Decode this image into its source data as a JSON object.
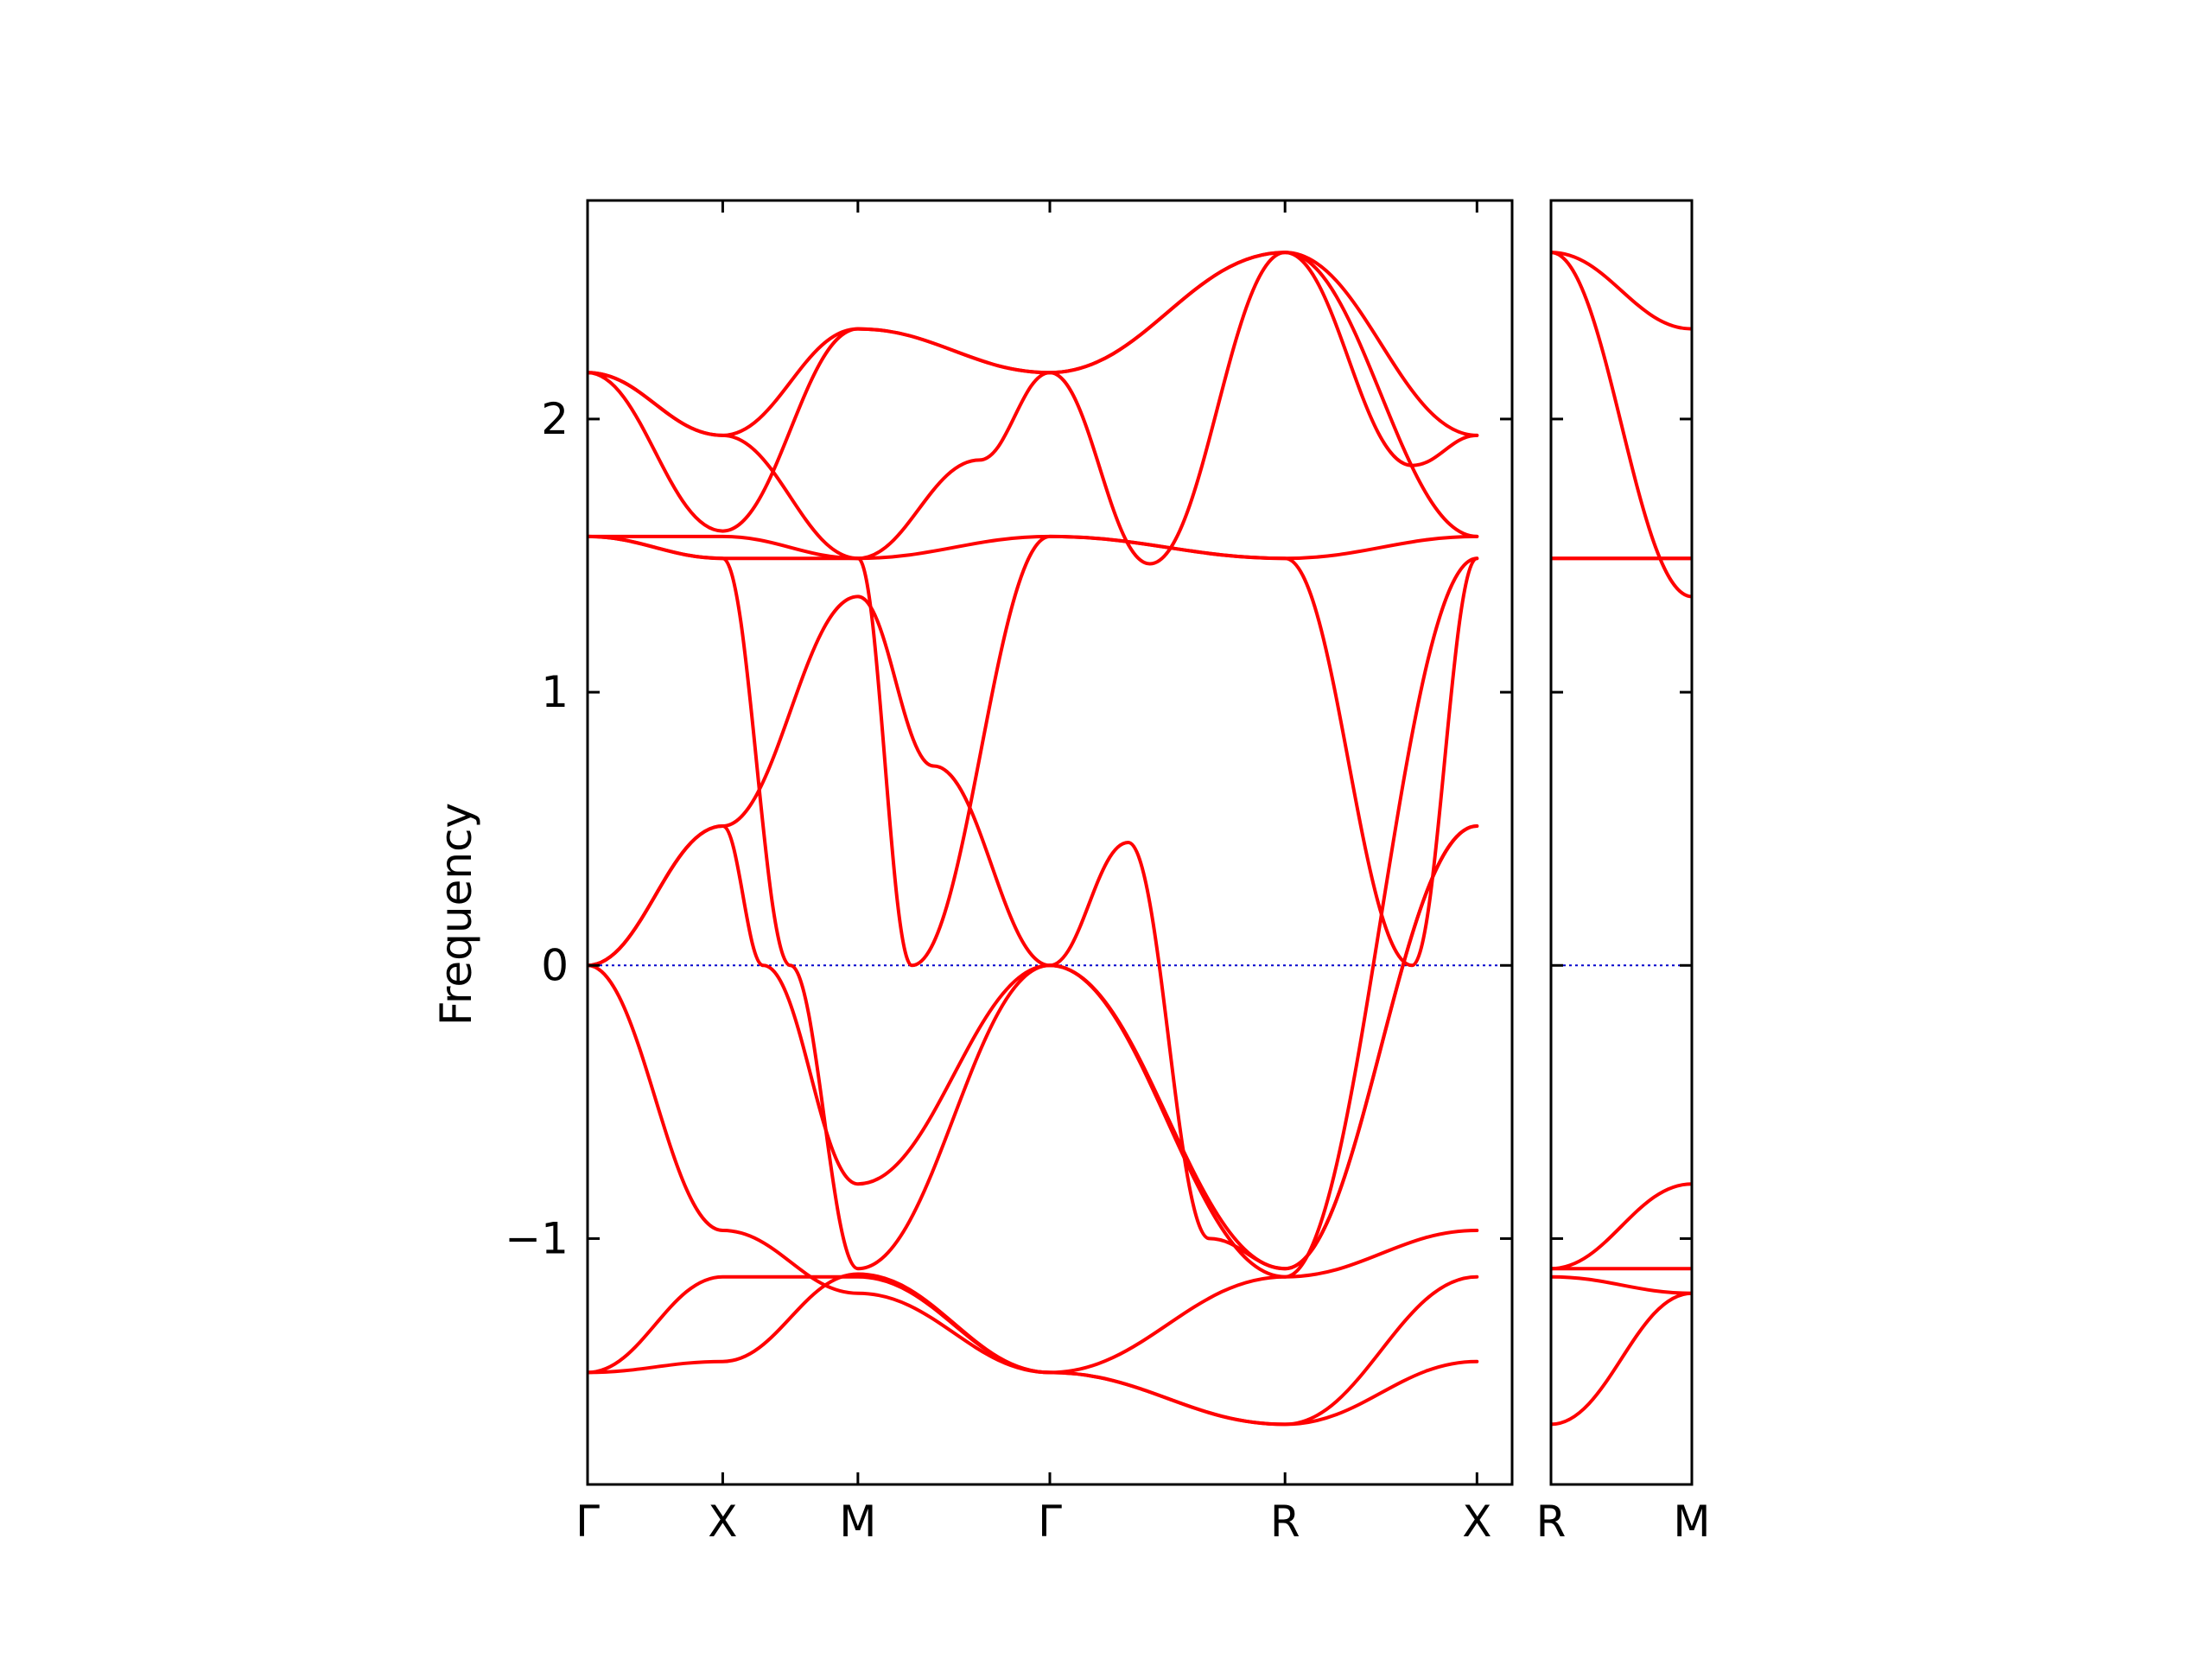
{
  "chart_data": {
    "type": "line",
    "ylabel": "Frequency",
    "ylim": [
      -1.9,
      2.8
    ],
    "yticks": [
      -1,
      0,
      1,
      2
    ],
    "ytick_labels": [
      "−1",
      "0",
      "1",
      "2"
    ],
    "colors": {
      "bands": "#ff0000",
      "zero_line": "#0000cc",
      "axes": "#000000"
    },
    "grid": false,
    "panels": [
      {
        "xlim": [
          0,
          3.42
        ],
        "ticks": [
          {
            "x": 0.0,
            "label": "Γ"
          },
          {
            "x": 0.5,
            "label": "X"
          },
          {
            "x": 1.0,
            "label": "M"
          },
          {
            "x": 1.71,
            "label": "Γ"
          },
          {
            "x": 2.58,
            "label": "R"
          },
          {
            "x": 3.29,
            "label": "X"
          }
        ],
        "series": [
          {
            "x": [
              0,
              0.5,
              1.0,
              1.71,
              2.58,
              3.29
            ],
            "y": [
              -1.49,
              -1.45,
              -1.13,
              -1.49,
              -1.68,
              -1.45
            ]
          },
          {
            "x": [
              0,
              0.5,
              1.0,
              1.71,
              2.58,
              3.29
            ],
            "y": [
              -1.49,
              -1.14,
              -1.14,
              -1.49,
              -1.68,
              -1.14
            ]
          },
          {
            "x": [
              0,
              0.5,
              1.0,
              1.71,
              2.58,
              3.29
            ],
            "y": [
              0.0,
              -0.97,
              -1.2,
              -1.49,
              -1.14,
              -0.97
            ]
          },
          {
            "x": [
              0,
              0.5,
              0.65,
              1.0,
              1.71,
              2.0,
              2.3,
              2.58,
              3.29
            ],
            "y": [
              0.0,
              0.51,
              0.0,
              -0.8,
              0.0,
              0.45,
              -1.0,
              -1.11,
              0.51
            ]
          },
          {
            "x": [
              0,
              0.5,
              1.0,
              1.28,
              1.71,
              2.58,
              3.29
            ],
            "y": [
              0.0,
              0.51,
              1.35,
              0.73,
              0.0,
              -1.14,
              1.49
            ]
          },
          {
            "x": [
              0,
              0.5,
              0.75,
              1.0,
              1.71,
              2.58,
              3.29
            ],
            "y": [
              1.57,
              1.49,
              0.0,
              -1.11,
              0.0,
              -1.11,
              0.51
            ]
          },
          {
            "x": [
              0,
              0.5,
              1.0,
              1.2,
              1.71,
              2.58,
              3.05,
              3.29
            ],
            "y": [
              1.57,
              1.49,
              1.49,
              0.0,
              1.57,
              1.49,
              0.0,
              1.49
            ]
          },
          {
            "x": [
              0,
              0.5,
              1.0,
              1.71,
              2.58,
              3.29
            ],
            "y": [
              1.57,
              1.57,
              1.49,
              1.57,
              1.49,
              1.57
            ]
          },
          {
            "x": [
              0,
              0.5,
              1.0,
              1.71,
              2.08,
              2.58,
              3.29
            ],
            "y": [
              2.17,
              1.59,
              2.33,
              2.17,
              1.47,
              2.61,
              1.57
            ]
          },
          {
            "x": [
              0,
              0.5,
              1.0,
              1.45,
              1.71,
              2.58,
              3.05,
              3.29
            ],
            "y": [
              2.17,
              1.94,
              1.49,
              1.85,
              2.17,
              2.61,
              1.83,
              1.94
            ]
          },
          {
            "x": [
              0,
              0.5,
              1.0,
              1.71,
              2.58,
              3.29
            ],
            "y": [
              2.17,
              1.94,
              2.33,
              2.17,
              2.61,
              1.94
            ]
          }
        ]
      },
      {
        "xlim": [
          0,
          0.5
        ],
        "ticks": [
          {
            "x": 0.0,
            "label": "R"
          },
          {
            "x": 0.5,
            "label": "M"
          }
        ],
        "series": [
          {
            "x": [
              0,
              0.5
            ],
            "y": [
              2.61,
              2.33
            ]
          },
          {
            "x": [
              0,
              0.5
            ],
            "y": [
              2.61,
              1.35
            ]
          },
          {
            "x": [
              0,
              0.5
            ],
            "y": [
              1.49,
              1.49
            ]
          },
          {
            "x": [
              0,
              0.5
            ],
            "y": [
              1.49,
              1.49
            ]
          },
          {
            "x": [
              0,
              0.5
            ],
            "y": [
              -1.11,
              -0.8
            ]
          },
          {
            "x": [
              0,
              0.5
            ],
            "y": [
              -1.11,
              -1.11
            ]
          },
          {
            "x": [
              0,
              0.5
            ],
            "y": [
              -1.14,
              -1.2
            ]
          },
          {
            "x": [
              0,
              0.5
            ],
            "y": [
              -1.68,
              -1.2
            ]
          }
        ]
      }
    ]
  }
}
